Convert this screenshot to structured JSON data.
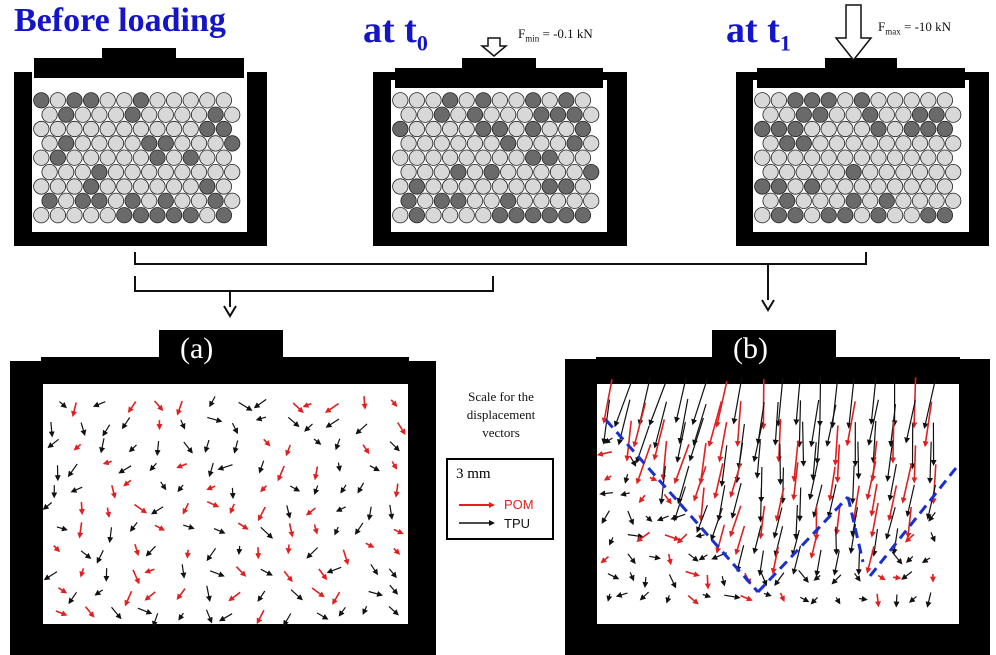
{
  "stages": {
    "before": {
      "title": "Before loading"
    },
    "t0": {
      "title_main": "at t",
      "title_sub": "0",
      "force_symbol": "F",
      "force_sub": "min",
      "force_value": " = -0.1 kN"
    },
    "t1": {
      "title_main": "at t",
      "title_sub": "1",
      "force_symbol": "F",
      "force_sub": "max",
      "force_value": " = -10 kN"
    }
  },
  "panels": {
    "a": {
      "label": "(a)"
    },
    "b": {
      "label": "(b)"
    }
  },
  "scale": {
    "caption_line1": "Scale for the",
    "caption_line2": "displacement",
    "caption_line3": "vectors",
    "length": "3 mm",
    "pom_label": "POM",
    "tpu_label": "TPU"
  },
  "colors": {
    "title_blue": "#1414c8",
    "pom_red": "#e02020",
    "tpu_black": "#111111",
    "shear_band_blue": "#1a2fd0",
    "particle_light": "#d8d8d8",
    "particle_dark": "#6a6a6a"
  }
}
